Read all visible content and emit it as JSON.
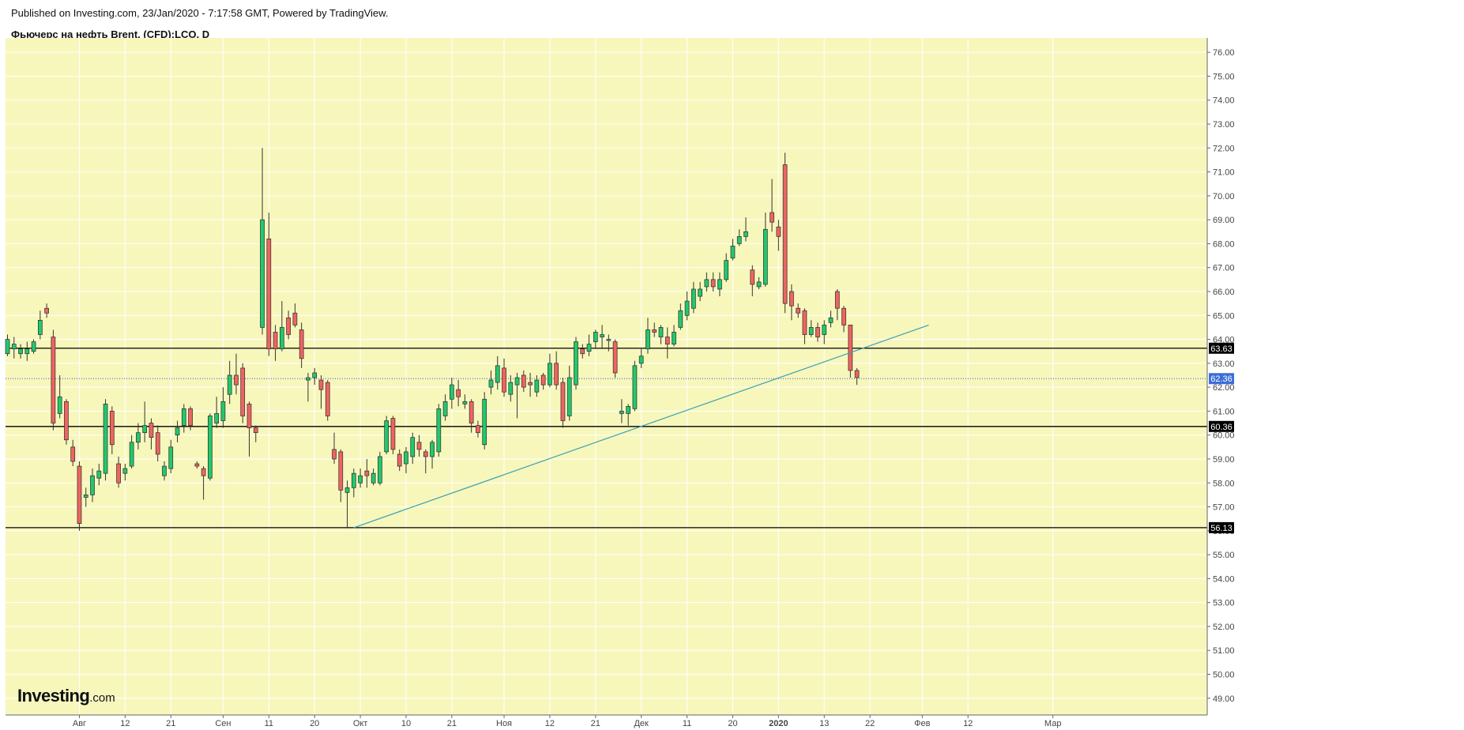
{
  "header": {
    "published": "Published on Investing.com, 23/Jan/2020 - 7:17:58 GMT, Powered by TradingView.",
    "symbol": "Фьючерс на нефть Brent, (CFD):LCO, D"
  },
  "logo": {
    "main": "Investing",
    "suffix": ".com"
  },
  "colors": {
    "background": "#f7f7bc",
    "grid": "#ffffff",
    "up": "#22c86d",
    "down": "#ef6461",
    "wick": "#333333",
    "trendline": "#3aa0b4",
    "level_line": "#000000",
    "current_line": "#2a56c6",
    "current_label": "#3b6fd8"
  },
  "chart_data": {
    "type": "candlestick",
    "ylim": [
      48.3,
      76.6
    ],
    "y_ticks": [
      "49.00",
      "50.00",
      "51.00",
      "52.00",
      "53.00",
      "54.00",
      "55.00",
      "56.00",
      "57.00",
      "58.00",
      "59.00",
      "60.00",
      "61.00",
      "62.00",
      "63.00",
      "64.00",
      "65.00",
      "66.00",
      "67.00",
      "68.00",
      "69.00",
      "70.00",
      "71.00",
      "72.00",
      "73.00",
      "74.00",
      "75.00",
      "76.00"
    ],
    "x_ticks": [
      {
        "label": "Авг",
        "index": 11,
        "bold": false
      },
      {
        "label": "12",
        "index": 18,
        "bold": false
      },
      {
        "label": "21",
        "index": 25,
        "bold": false
      },
      {
        "label": "Сен",
        "index": 33,
        "bold": false
      },
      {
        "label": "11",
        "index": 40,
        "bold": false
      },
      {
        "label": "20",
        "index": 47,
        "bold": false
      },
      {
        "label": "Окт",
        "index": 54,
        "bold": false
      },
      {
        "label": "10",
        "index": 61,
        "bold": false
      },
      {
        "label": "21",
        "index": 68,
        "bold": false
      },
      {
        "label": "Ноя",
        "index": 76,
        "bold": false
      },
      {
        "label": "12",
        "index": 83,
        "bold": false
      },
      {
        "label": "21",
        "index": 90,
        "bold": false
      },
      {
        "label": "Дек",
        "index": 97,
        "bold": false
      },
      {
        "label": "11",
        "index": 104,
        "bold": false
      },
      {
        "label": "20",
        "index": 111,
        "bold": false
      },
      {
        "label": "2020",
        "index": 118,
        "bold": true
      },
      {
        "label": "13",
        "index": 125,
        "bold": false
      },
      {
        "label": "22",
        "index": 132,
        "bold": false
      },
      {
        "label": "Фев",
        "index": 140,
        "bold": false
      },
      {
        "label": "12",
        "index": 147,
        "bold": false
      },
      {
        "label": "Мар",
        "index": 160,
        "bold": false
      }
    ],
    "candles": [
      [
        63.4,
        64.0,
        63.3,
        64.2
      ],
      [
        63.6,
        63.8,
        63.2,
        64.1
      ],
      [
        63.4,
        63.6,
        63.2,
        63.8
      ],
      [
        63.4,
        63.6,
        63.1,
        63.9
      ],
      [
        63.5,
        63.9,
        63.4,
        64.0
      ],
      [
        64.2,
        64.8,
        64.0,
        65.2
      ],
      [
        65.3,
        65.1,
        64.9,
        65.5
      ],
      [
        64.1,
        60.5,
        60.2,
        64.4
      ],
      [
        60.9,
        61.6,
        60.7,
        62.5
      ],
      [
        61.4,
        59.8,
        59.6,
        61.5
      ],
      [
        59.5,
        58.9,
        58.7,
        59.8
      ],
      [
        58.7,
        56.3,
        56.0,
        58.9
      ],
      [
        57.4,
        57.5,
        57.0,
        57.8
      ],
      [
        57.5,
        58.3,
        57.2,
        58.6
      ],
      [
        58.2,
        58.5,
        57.9,
        58.8
      ],
      [
        58.4,
        61.3,
        58.1,
        61.5
      ],
      [
        61.0,
        59.6,
        59.2,
        61.2
      ],
      [
        58.8,
        58.0,
        57.8,
        59.1
      ],
      [
        58.4,
        58.6,
        58.1,
        58.8
      ],
      [
        58.7,
        59.7,
        58.6,
        60.0
      ],
      [
        59.7,
        60.1,
        59.4,
        60.5
      ],
      [
        60.1,
        60.4,
        59.7,
        61.4
      ],
      [
        60.5,
        59.9,
        59.4,
        60.7
      ],
      [
        60.1,
        59.2,
        58.9,
        60.4
      ],
      [
        58.3,
        58.7,
        58.1,
        58.9
      ],
      [
        58.6,
        59.5,
        58.4,
        59.8
      ],
      [
        60.0,
        60.3,
        59.7,
        60.6
      ],
      [
        60.4,
        61.1,
        60.1,
        61.3
      ],
      [
        61.1,
        60.4,
        60.2,
        61.2
      ],
      [
        58.8,
        58.7,
        58.6,
        58.9
      ],
      [
        58.6,
        58.3,
        57.3,
        58.7
      ],
      [
        58.2,
        60.8,
        58.1,
        60.9
      ],
      [
        60.5,
        60.9,
        60.3,
        61.6
      ],
      [
        60.6,
        61.4,
        60.3,
        62.0
      ],
      [
        61.7,
        62.5,
        61.3,
        63.1
      ],
      [
        62.5,
        62.1,
        61.7,
        63.4
      ],
      [
        62.8,
        60.8,
        60.5,
        63.0
      ],
      [
        61.3,
        60.3,
        59.1,
        61.4
      ],
      [
        60.3,
        60.1,
        59.7,
        60.4
      ],
      [
        64.5,
        69.0,
        64.2,
        72.0
      ],
      [
        68.2,
        63.6,
        63.3,
        69.3
      ],
      [
        64.3,
        63.6,
        63.1,
        64.6
      ],
      [
        63.6,
        64.5,
        63.5,
        65.6
      ],
      [
        64.9,
        64.2,
        64.0,
        65.2
      ],
      [
        65.1,
        64.6,
        64.5,
        65.5
      ],
      [
        64.4,
        63.2,
        62.8,
        64.7
      ],
      [
        62.3,
        62.4,
        61.4,
        62.6
      ],
      [
        62.4,
        62.6,
        62.1,
        62.8
      ],
      [
        62.3,
        61.9,
        61.1,
        62.5
      ],
      [
        62.2,
        60.8,
        60.6,
        62.3
      ],
      [
        59.4,
        59.0,
        58.8,
        60.1
      ],
      [
        59.3,
        57.7,
        57.2,
        59.4
      ],
      [
        57.6,
        57.8,
        56.1,
        58.1
      ],
      [
        57.8,
        58.4,
        57.4,
        58.6
      ],
      [
        58.0,
        58.3,
        57.8,
        58.6
      ],
      [
        58.5,
        58.3,
        57.8,
        59.0
      ],
      [
        58.0,
        58.4,
        57.9,
        58.6
      ],
      [
        58.0,
        59.1,
        57.9,
        59.3
      ],
      [
        59.3,
        60.6,
        59.2,
        60.8
      ],
      [
        60.7,
        59.4,
        59.2,
        60.8
      ],
      [
        59.2,
        58.7,
        58.5,
        59.4
      ],
      [
        58.8,
        59.3,
        58.4,
        59.5
      ],
      [
        59.1,
        59.9,
        58.8,
        60.1
      ],
      [
        59.7,
        59.4,
        59.1,
        60.0
      ],
      [
        59.3,
        59.1,
        58.4,
        59.4
      ],
      [
        59.1,
        59.7,
        58.6,
        59.8
      ],
      [
        59.3,
        61.1,
        59.1,
        61.3
      ],
      [
        60.8,
        61.4,
        60.6,
        61.7
      ],
      [
        61.5,
        62.1,
        61.1,
        62.4
      ],
      [
        61.9,
        61.6,
        61.2,
        62.3
      ],
      [
        61.3,
        61.4,
        61.1,
        61.7
      ],
      [
        61.4,
        60.5,
        60.1,
        61.5
      ],
      [
        60.4,
        60.1,
        59.9,
        60.6
      ],
      [
        59.6,
        61.5,
        59.4,
        61.8
      ],
      [
        62.0,
        62.3,
        61.7,
        62.7
      ],
      [
        62.2,
        62.9,
        61.9,
        63.3
      ],
      [
        62.8,
        61.8,
        61.6,
        63.2
      ],
      [
        61.7,
        62.2,
        61.4,
        62.5
      ],
      [
        62.1,
        62.4,
        60.7,
        62.6
      ],
      [
        62.5,
        62.0,
        61.8,
        62.7
      ],
      [
        62.2,
        62.1,
        61.6,
        62.6
      ],
      [
        61.8,
        62.3,
        61.6,
        62.5
      ],
      [
        62.5,
        62.1,
        61.9,
        62.6
      ],
      [
        62.1,
        63.0,
        62.0,
        63.4
      ],
      [
        63.0,
        62.1,
        61.9,
        63.5
      ],
      [
        62.2,
        60.6,
        60.3,
        62.4
      ],
      [
        60.8,
        62.4,
        60.6,
        62.9
      ],
      [
        62.1,
        63.9,
        61.9,
        64.1
      ],
      [
        63.6,
        63.4,
        63.2,
        63.8
      ],
      [
        63.5,
        63.8,
        63.3,
        64.2
      ],
      [
        63.9,
        64.3,
        63.6,
        64.4
      ],
      [
        64.1,
        64.2,
        63.6,
        64.6
      ],
      [
        64.0,
        64.0,
        63.5,
        64.2
      ],
      [
        63.9,
        62.6,
        62.4,
        64.0
      ],
      [
        60.9,
        61.0,
        60.5,
        61.5
      ],
      [
        60.9,
        61.2,
        60.4,
        61.3
      ],
      [
        61.1,
        62.9,
        61.0,
        63.1
      ],
      [
        63.0,
        63.3,
        62.8,
        63.6
      ],
      [
        63.6,
        64.4,
        63.4,
        64.9
      ],
      [
        64.4,
        64.3,
        64.1,
        64.7
      ],
      [
        64.1,
        64.5,
        63.8,
        64.6
      ],
      [
        64.1,
        63.8,
        63.2,
        64.5
      ],
      [
        63.8,
        64.3,
        63.7,
        64.6
      ],
      [
        64.5,
        65.2,
        64.4,
        65.5
      ],
      [
        65.0,
        65.6,
        64.8,
        66.0
      ],
      [
        65.3,
        66.1,
        65.1,
        66.4
      ],
      [
        65.8,
        66.1,
        65.6,
        66.4
      ],
      [
        66.2,
        66.5,
        66.0,
        66.8
      ],
      [
        66.5,
        66.2,
        66.0,
        66.8
      ],
      [
        66.1,
        66.5,
        65.8,
        66.8
      ],
      [
        66.5,
        67.3,
        66.4,
        67.6
      ],
      [
        67.4,
        67.9,
        67.3,
        68.2
      ],
      [
        68.0,
        68.3,
        67.9,
        68.6
      ],
      [
        68.3,
        68.5,
        68.1,
        69.1
      ],
      [
        66.9,
        66.3,
        65.8,
        67.1
      ],
      [
        66.2,
        66.4,
        66.1,
        66.6
      ],
      [
        66.3,
        68.6,
        66.2,
        69.3
      ],
      [
        69.3,
        68.9,
        68.5,
        70.7
      ],
      [
        68.7,
        68.3,
        67.7,
        69.0
      ],
      [
        71.3,
        65.5,
        65.1,
        71.8
      ],
      [
        66.0,
        65.4,
        64.8,
        66.3
      ],
      [
        65.3,
        65.1,
        64.9,
        65.5
      ],
      [
        65.2,
        64.2,
        63.8,
        65.3
      ],
      [
        64.2,
        64.5,
        64.1,
        64.8
      ],
      [
        64.5,
        64.1,
        63.9,
        64.7
      ],
      [
        64.2,
        64.6,
        63.8,
        64.8
      ],
      [
        64.7,
        64.9,
        64.5,
        65.2
      ],
      [
        66.0,
        65.3,
        64.8,
        66.1
      ],
      [
        65.3,
        64.6,
        64.3,
        65.4
      ],
      [
        64.6,
        62.7,
        62.4,
        64.6
      ],
      [
        62.7,
        62.4,
        62.1,
        62.8
      ]
    ],
    "horizontal_levels": [
      {
        "value": 63.63,
        "label": "63.63",
        "style": "solid"
      },
      {
        "value": 60.36,
        "label": "60.36",
        "style": "solid"
      },
      {
        "value": 56.13,
        "label": "56.13",
        "style": "solid"
      }
    ],
    "current_price": {
      "value": 62.36,
      "label": "62.36",
      "style": "dotted"
    },
    "trendline": {
      "start": {
        "index": 53,
        "value": 56.13
      },
      "end": {
        "index": 141,
        "value": 64.6
      }
    }
  }
}
